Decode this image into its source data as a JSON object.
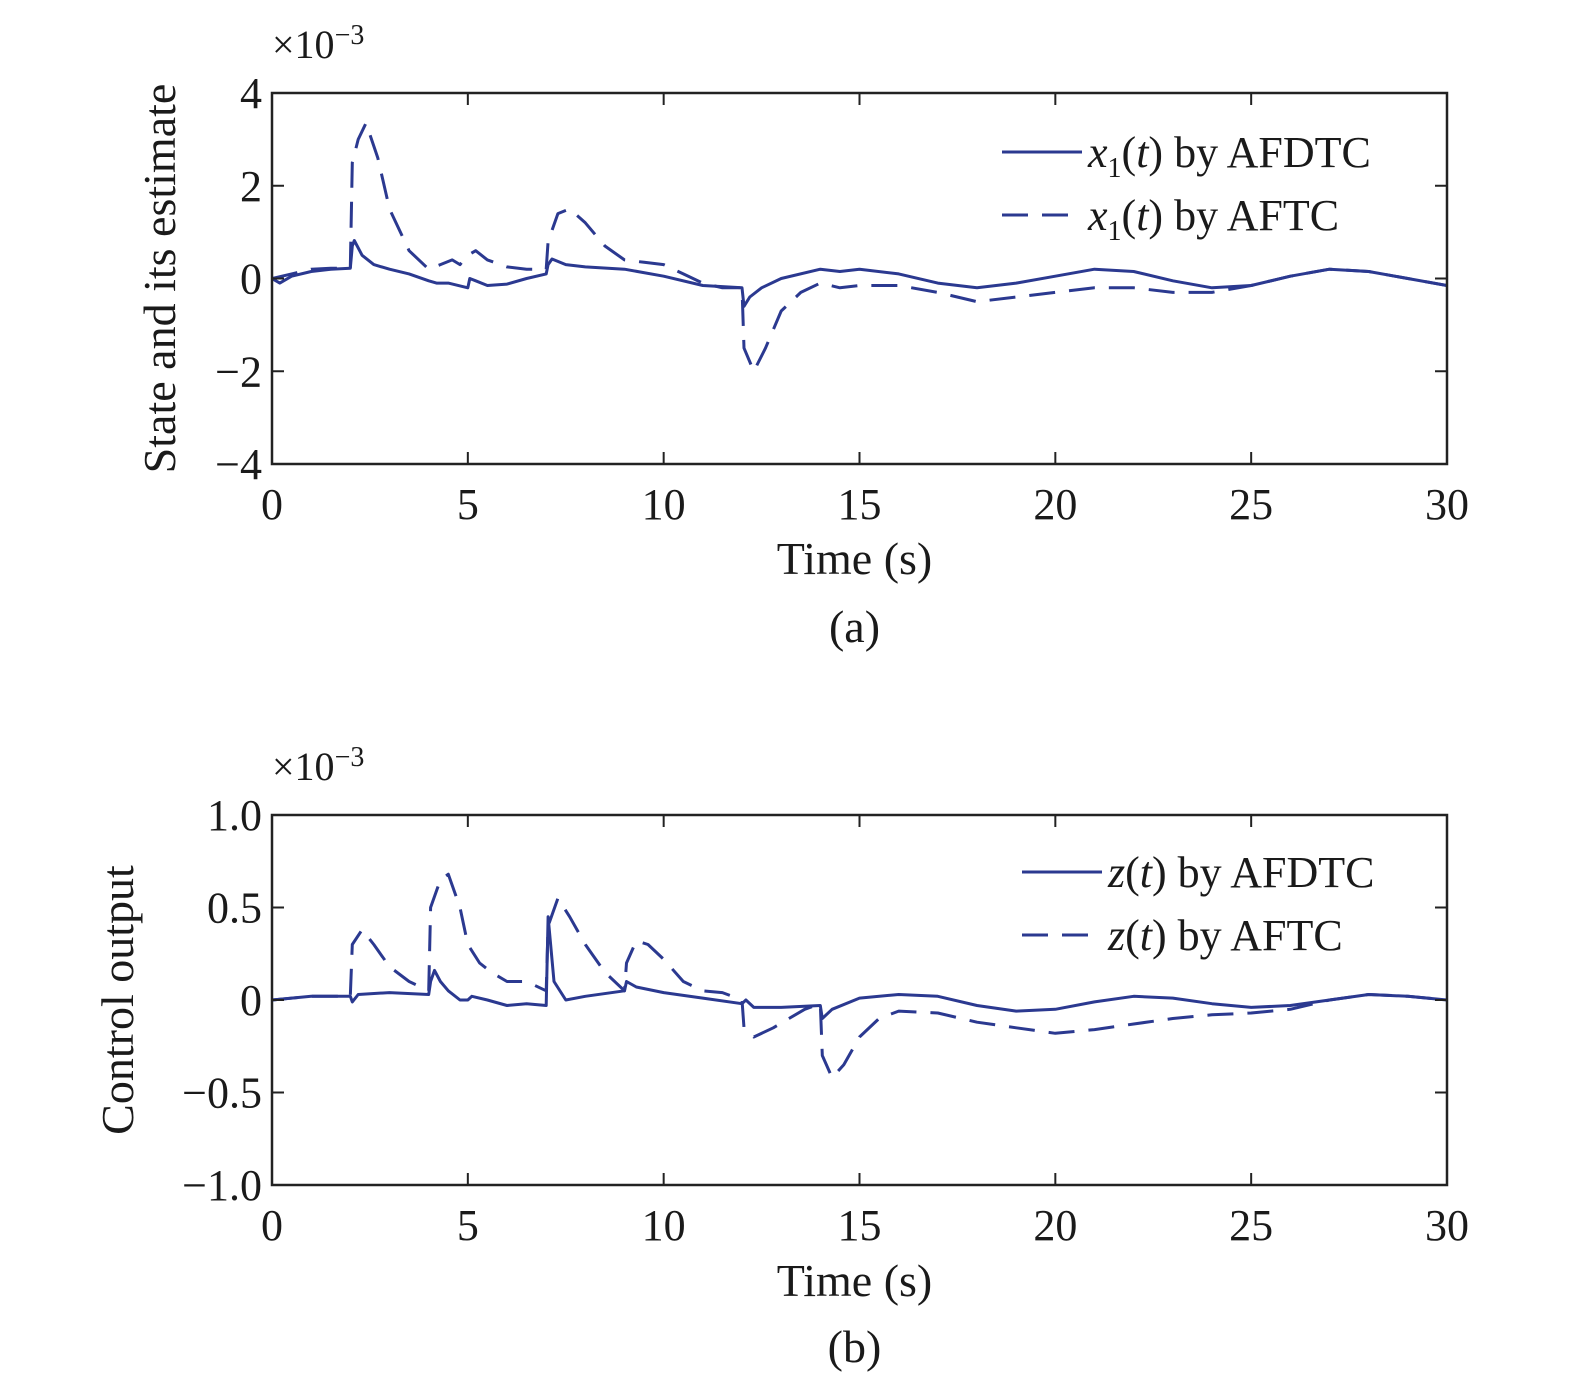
{
  "series_color": "#2b3990",
  "chart_data": [
    {
      "type": "line",
      "panel_label": "(a)",
      "ylabel": "State and its estimate",
      "xlabel": "Time (s)",
      "y_multiplier": "×10",
      "y_multiplier_exp": "−3",
      "xlim": [
        0,
        30
      ],
      "ylim": [
        -4,
        4
      ],
      "xticks": [
        0,
        5,
        10,
        15,
        20,
        25,
        30
      ],
      "yticks": [
        -4,
        -2,
        0,
        2,
        4
      ],
      "xtick_labels": [
        "0",
        "5",
        "10",
        "15",
        "20",
        "25",
        "30"
      ],
      "ytick_labels": [
        "−4",
        "−2",
        "0",
        "2",
        "4"
      ],
      "grid": false,
      "legend_position": "top-right",
      "series": [
        {
          "name_var": "x",
          "name_sub": "1",
          "name_arg": "t",
          "name_suffix": "by AFDTC",
          "style": "solid",
          "points": [
            [
              0,
              0
            ],
            [
              0.2,
              -0.1
            ],
            [
              0.5,
              0.05
            ],
            [
              1.0,
              0.15
            ],
            [
              1.5,
              0.2
            ],
            [
              2.0,
              0.22
            ],
            [
              2.05,
              0.7
            ],
            [
              2.1,
              0.82
            ],
            [
              2.3,
              0.5
            ],
            [
              2.6,
              0.3
            ],
            [
              3.0,
              0.2
            ],
            [
              3.5,
              0.1
            ],
            [
              4.0,
              -0.05
            ],
            [
              4.2,
              -0.1
            ],
            [
              4.5,
              -0.1
            ],
            [
              5.0,
              -0.2
            ],
            [
              5.05,
              0.0
            ],
            [
              5.2,
              -0.05
            ],
            [
              5.5,
              -0.15
            ],
            [
              6.0,
              -0.12
            ],
            [
              6.5,
              0.0
            ],
            [
              7.0,
              0.1
            ],
            [
              7.05,
              0.3
            ],
            [
              7.15,
              0.42
            ],
            [
              7.5,
              0.3
            ],
            [
              8.0,
              0.25
            ],
            [
              9.0,
              0.2
            ],
            [
              10.0,
              0.05
            ],
            [
              11.0,
              -0.15
            ],
            [
              12.0,
              -0.2
            ],
            [
              12.05,
              -0.6
            ],
            [
              12.2,
              -0.4
            ],
            [
              12.5,
              -0.2
            ],
            [
              13.0,
              0.0
            ],
            [
              14.0,
              0.2
            ],
            [
              14.5,
              0.15
            ],
            [
              15.0,
              0.2
            ],
            [
              16.0,
              0.1
            ],
            [
              17.0,
              -0.1
            ],
            [
              18.0,
              -0.2
            ],
            [
              19.0,
              -0.1
            ],
            [
              20.0,
              0.05
            ],
            [
              21.0,
              0.2
            ],
            [
              22.0,
              0.15
            ],
            [
              23.0,
              -0.05
            ],
            [
              24.0,
              -0.2
            ],
            [
              25.0,
              -0.15
            ],
            [
              26.0,
              0.05
            ],
            [
              27.0,
              0.2
            ],
            [
              28.0,
              0.15
            ],
            [
              29.0,
              0.0
            ],
            [
              30.0,
              -0.15
            ]
          ]
        },
        {
          "name_var": "x",
          "name_sub": "1",
          "name_arg": "t",
          "name_suffix": "by AFTC",
          "style": "dashed",
          "points": [
            [
              0,
              0
            ],
            [
              0.5,
              0.1
            ],
            [
              1.0,
              0.2
            ],
            [
              1.5,
              0.22
            ],
            [
              2.0,
              0.22
            ],
            [
              2.05,
              2.5
            ],
            [
              2.2,
              3.0
            ],
            [
              2.4,
              3.35
            ],
            [
              2.7,
              2.6
            ],
            [
              3.0,
              1.5
            ],
            [
              3.5,
              0.6
            ],
            [
              4.0,
              0.2
            ],
            [
              4.3,
              0.3
            ],
            [
              4.6,
              0.4
            ],
            [
              4.8,
              0.3
            ],
            [
              5.0,
              0.5
            ],
            [
              5.2,
              0.6
            ],
            [
              5.5,
              0.4
            ],
            [
              6.0,
              0.25
            ],
            [
              6.5,
              0.2
            ],
            [
              7.0,
              0.2
            ],
            [
              7.05,
              0.8
            ],
            [
              7.3,
              1.4
            ],
            [
              7.6,
              1.5
            ],
            [
              8.0,
              1.2
            ],
            [
              8.5,
              0.7
            ],
            [
              9.0,
              0.4
            ],
            [
              9.5,
              0.35
            ],
            [
              10.0,
              0.3
            ],
            [
              10.5,
              0.1
            ],
            [
              11.0,
              -0.1
            ],
            [
              11.5,
              -0.2
            ],
            [
              12.0,
              -0.2
            ],
            [
              12.05,
              -1.5
            ],
            [
              12.3,
              -2.0
            ],
            [
              12.6,
              -1.5
            ],
            [
              13.0,
              -0.7
            ],
            [
              13.5,
              -0.3
            ],
            [
              14.0,
              -0.1
            ],
            [
              14.5,
              -0.2
            ],
            [
              15.0,
              -0.15
            ],
            [
              16.0,
              -0.15
            ],
            [
              17.0,
              -0.3
            ],
            [
              18.0,
              -0.5
            ],
            [
              19.0,
              -0.4
            ],
            [
              20.0,
              -0.3
            ],
            [
              21.0,
              -0.2
            ],
            [
              22.0,
              -0.2
            ],
            [
              23.0,
              -0.3
            ],
            [
              24.0,
              -0.3
            ],
            [
              25.0,
              -0.15
            ],
            [
              26.0,
              0.05
            ],
            [
              27.0,
              0.2
            ],
            [
              28.0,
              0.15
            ],
            [
              29.0,
              0.0
            ],
            [
              30.0,
              -0.15
            ]
          ]
        }
      ]
    },
    {
      "type": "line",
      "panel_label": "(b)",
      "ylabel": "Control output",
      "xlabel": "Time (s)",
      "y_multiplier": "×10",
      "y_multiplier_exp": "−3",
      "xlim": [
        0,
        30
      ],
      "ylim": [
        -1,
        1
      ],
      "xticks": [
        0,
        5,
        10,
        15,
        20,
        25,
        30
      ],
      "yticks": [
        -1,
        -0.5,
        0,
        0.5,
        1
      ],
      "xtick_labels": [
        "0",
        "5",
        "10",
        "15",
        "20",
        "25",
        "30"
      ],
      "ytick_labels": [
        "−1.0",
        "−0.5",
        "0",
        "0.5",
        "1.0"
      ],
      "grid": false,
      "legend_position": "top-right",
      "series": [
        {
          "name_var": "z",
          "name_sub": "",
          "name_arg": "t",
          "name_suffix": "by AFDTC",
          "style": "solid",
          "points": [
            [
              0,
              0
            ],
            [
              0.5,
              0.01
            ],
            [
              1.0,
              0.02
            ],
            [
              2.0,
              0.02
            ],
            [
              2.05,
              -0.01
            ],
            [
              2.2,
              0.03
            ],
            [
              3.0,
              0.04
            ],
            [
              4.0,
              0.03
            ],
            [
              4.05,
              0.1
            ],
            [
              4.15,
              0.16
            ],
            [
              4.3,
              0.1
            ],
            [
              4.5,
              0.05
            ],
            [
              4.8,
              0.0
            ],
            [
              5.0,
              0.0
            ],
            [
              5.1,
              0.02
            ],
            [
              5.5,
              0.0
            ],
            [
              6.0,
              -0.03
            ],
            [
              6.5,
              -0.02
            ],
            [
              7.0,
              -0.03
            ],
            [
              7.05,
              0.45
            ],
            [
              7.2,
              0.1
            ],
            [
              7.5,
              0.0
            ],
            [
              8.0,
              0.02
            ],
            [
              9.0,
              0.05
            ],
            [
              9.05,
              0.1
            ],
            [
              9.3,
              0.07
            ],
            [
              10.0,
              0.04
            ],
            [
              11.0,
              0.01
            ],
            [
              12.0,
              -0.02
            ],
            [
              12.1,
              0.0
            ],
            [
              12.3,
              -0.04
            ],
            [
              13.0,
              -0.04
            ],
            [
              14.0,
              -0.03
            ],
            [
              14.05,
              -0.1
            ],
            [
              14.3,
              -0.05
            ],
            [
              15.0,
              0.01
            ],
            [
              16.0,
              0.03
            ],
            [
              17.0,
              0.02
            ],
            [
              18.0,
              -0.03
            ],
            [
              19.0,
              -0.06
            ],
            [
              20.0,
              -0.05
            ],
            [
              21.0,
              -0.01
            ],
            [
              22.0,
              0.02
            ],
            [
              23.0,
              0.01
            ],
            [
              24.0,
              -0.02
            ],
            [
              25.0,
              -0.04
            ],
            [
              26.0,
              -0.03
            ],
            [
              27.0,
              0.0
            ],
            [
              28.0,
              0.03
            ],
            [
              29.0,
              0.02
            ],
            [
              30.0,
              0.0
            ]
          ]
        },
        {
          "name_var": "z",
          "name_sub": "",
          "name_arg": "t",
          "name_suffix": "by AFTC",
          "style": "dashed",
          "points": [
            [
              0,
              0
            ],
            [
              1.0,
              0.02
            ],
            [
              2.0,
              0.02
            ],
            [
              2.05,
              0.3
            ],
            [
              2.3,
              0.38
            ],
            [
              2.6,
              0.3
            ],
            [
              3.0,
              0.18
            ],
            [
              3.5,
              0.1
            ],
            [
              4.0,
              0.05
            ],
            [
              4.05,
              0.5
            ],
            [
              4.3,
              0.65
            ],
            [
              4.5,
              0.68
            ],
            [
              4.8,
              0.5
            ],
            [
              5.0,
              0.3
            ],
            [
              5.3,
              0.2
            ],
            [
              5.6,
              0.15
            ],
            [
              6.0,
              0.1
            ],
            [
              6.5,
              0.1
            ],
            [
              7.0,
              0.05
            ],
            [
              7.05,
              0.4
            ],
            [
              7.3,
              0.55
            ],
            [
              7.6,
              0.45
            ],
            [
              8.0,
              0.3
            ],
            [
              8.5,
              0.15
            ],
            [
              9.0,
              0.05
            ],
            [
              9.05,
              0.2
            ],
            [
              9.3,
              0.32
            ],
            [
              9.6,
              0.3
            ],
            [
              10.0,
              0.22
            ],
            [
              10.5,
              0.1
            ],
            [
              11.0,
              0.05
            ],
            [
              11.5,
              0.04
            ],
            [
              12.0,
              0.0
            ],
            [
              12.05,
              -0.15
            ],
            [
              12.3,
              -0.2
            ],
            [
              12.8,
              -0.15
            ],
            [
              13.2,
              -0.1
            ],
            [
              13.6,
              -0.05
            ],
            [
              14.0,
              -0.02
            ],
            [
              14.05,
              -0.3
            ],
            [
              14.3,
              -0.42
            ],
            [
              14.6,
              -0.35
            ],
            [
              15.0,
              -0.2
            ],
            [
              15.5,
              -0.1
            ],
            [
              16.0,
              -0.06
            ],
            [
              17.0,
              -0.07
            ],
            [
              18.0,
              -0.12
            ],
            [
              19.0,
              -0.15
            ],
            [
              20.0,
              -0.18
            ],
            [
              21.0,
              -0.16
            ],
            [
              22.0,
              -0.13
            ],
            [
              23.0,
              -0.1
            ],
            [
              24.0,
              -0.08
            ],
            [
              25.0,
              -0.07
            ],
            [
              26.0,
              -0.05
            ],
            [
              27.0,
              0.0
            ],
            [
              28.0,
              0.03
            ],
            [
              29.0,
              0.02
            ],
            [
              30.0,
              0.0
            ]
          ]
        }
      ]
    }
  ]
}
